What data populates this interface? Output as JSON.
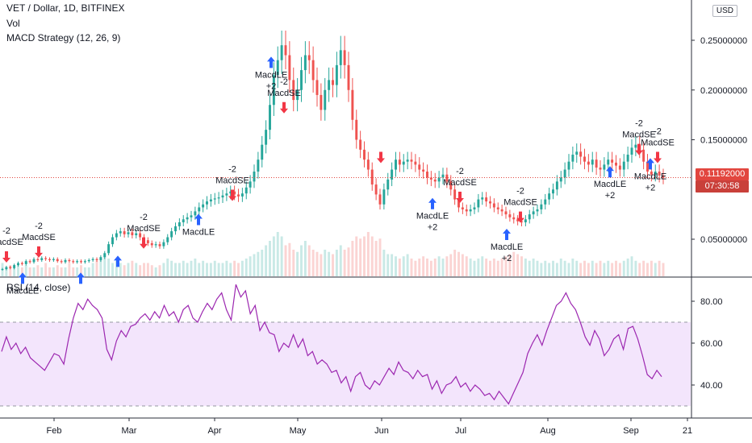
{
  "header": {
    "symbol_title": "VET / Dollar, 1D, BITFINEX",
    "volume_label": "Vol",
    "strategy_label": "MACD Strategy (12, 26, 9)"
  },
  "currency_badge": "USD",
  "price_axis": {
    "ticks": [
      "0.25000000",
      "0.20000000",
      "0.15000000",
      "0.05000000"
    ],
    "last_price": "0.11192000",
    "countdown": "07:30:58"
  },
  "rsi": {
    "label": "RSI (14, close)",
    "ticks": [
      "80.00",
      "60.00",
      "40.00"
    ],
    "upper_band": 70,
    "lower_band": 30,
    "values": [
      56,
      63,
      57,
      60,
      55,
      58,
      53,
      51,
      49,
      47,
      51,
      55,
      54,
      50,
      62,
      72,
      79,
      76,
      81,
      78,
      76,
      72,
      57,
      52,
      61,
      66,
      63,
      68,
      69,
      72,
      74,
      71,
      75,
      72,
      78,
      73,
      75,
      70,
      76,
      78,
      72,
      70,
      75,
      79,
      76,
      81,
      84,
      76,
      71,
      88,
      82,
      85,
      74,
      78,
      66,
      70,
      65,
      64,
      56,
      60,
      58,
      64,
      58,
      62,
      54,
      56,
      50,
      52,
      50,
      46,
      47,
      41,
      44,
      37,
      44,
      46,
      40,
      38,
      42,
      40,
      44,
      48,
      45,
      51,
      47,
      46,
      43,
      47,
      44,
      45,
      38,
      42,
      36,
      40,
      41,
      44,
      39,
      41,
      37,
      40,
      38,
      35,
      36,
      33,
      37,
      34,
      31,
      36,
      41,
      46,
      55,
      60,
      64,
      59,
      66,
      72,
      78,
      80,
      84,
      79,
      76,
      70,
      63,
      59,
      66,
      62,
      54,
      57,
      62,
      64,
      57,
      67,
      68,
      62,
      54,
      45,
      43,
      47,
      44
    ]
  },
  "trade_signals": [
    {
      "type": "sell",
      "text1": "-2",
      "text2": "MacdSE"
    },
    {
      "type": "buy",
      "text1": "MacdLE",
      "text2": ""
    },
    {
      "type": "sell",
      "text1": "-2",
      "text2": "MacdSE"
    },
    {
      "type": "buy",
      "text1": "",
      "text2": ""
    },
    {
      "type": "buy",
      "text1": "",
      "text2": ""
    },
    {
      "type": "sell",
      "text1": "-2",
      "text2": "MacdSE"
    },
    {
      "type": "buy",
      "text1": "MacdLE",
      "text2": ""
    },
    {
      "type": "sell",
      "text1": "-2",
      "text2": "MacdSE"
    },
    {
      "type": "buy",
      "text1": "MacdLE",
      "text2": "+2"
    },
    {
      "type": "sell",
      "text1": "-2",
      "text2": "MacdSE"
    },
    {
      "type": "sell",
      "text1": "",
      "text2": ""
    },
    {
      "type": "buy",
      "text1": "MacdLE",
      "text2": "+2"
    },
    {
      "type": "sell",
      "text1": "-2",
      "text2": "MacdSE"
    },
    {
      "type": "buy",
      "text1": "MacdLE",
      "text2": "+2"
    },
    {
      "type": "sell",
      "text1": "-2",
      "text2": "MacdSE"
    },
    {
      "type": "buy",
      "text1": "MacdLE",
      "text2": "+2"
    },
    {
      "type": "sell",
      "text1": "-2",
      "text2": "MacdSE"
    },
    {
      "type": "buy",
      "text1": "MacdLE",
      "text2": "+2"
    },
    {
      "type": "sell",
      "text1": "-2",
      "text2": "MacdSE"
    }
  ],
  "time_axis": [
    "Feb",
    "Mar",
    "Apr",
    "May",
    "Jun",
    "Jul",
    "Aug",
    "Sep",
    "21"
  ],
  "colors": {
    "up": "#26a69a",
    "down": "#ef5350",
    "buy_arrow": "#2962ff",
    "sell_arrow": "#f23645",
    "rsi_line": "#9c27b0",
    "rsi_band_fill": "#f3e5fc",
    "last_price": "#e2463f"
  },
  "chart_data": {
    "type": "candlestick",
    "series": [
      {
        "name": "VET / Dollar",
        "close": [
          0.02,
          0.022,
          0.021,
          0.024,
          0.026,
          0.025,
          0.028,
          0.027,
          0.03,
          0.029,
          0.031,
          0.03,
          0.029,
          0.03,
          0.028,
          0.027,
          0.029,
          0.028,
          0.027,
          0.028,
          0.027,
          0.028,
          0.029,
          0.03,
          0.029,
          0.032,
          0.036,
          0.045,
          0.052,
          0.056,
          0.058,
          0.055,
          0.057,
          0.054,
          0.056,
          0.052,
          0.049,
          0.046,
          0.044,
          0.045,
          0.043,
          0.047,
          0.052,
          0.058,
          0.063,
          0.067,
          0.07,
          0.072,
          0.074,
          0.078,
          0.082,
          0.085,
          0.088,
          0.09,
          0.091,
          0.092,
          0.094,
          0.096,
          0.098,
          0.095,
          0.093,
          0.096,
          0.102,
          0.108,
          0.118,
          0.13,
          0.145,
          0.16,
          0.185,
          0.215,
          0.23,
          0.245,
          0.235,
          0.21,
          0.19,
          0.2,
          0.22,
          0.235,
          0.23,
          0.21,
          0.195,
          0.18,
          0.2,
          0.21,
          0.205,
          0.225,
          0.24,
          0.225,
          0.2,
          0.17,
          0.15,
          0.14,
          0.13,
          0.12,
          0.105,
          0.095,
          0.085,
          0.1,
          0.11,
          0.12,
          0.13,
          0.125,
          0.128,
          0.13,
          0.128,
          0.125,
          0.12,
          0.118,
          0.112,
          0.11,
          0.108,
          0.112,
          0.115,
          0.108,
          0.1,
          0.09,
          0.082,
          0.08,
          0.078,
          0.08,
          0.082,
          0.09,
          0.092,
          0.088,
          0.086,
          0.082,
          0.08,
          0.078,
          0.075,
          0.072,
          0.07,
          0.068,
          0.067,
          0.07,
          0.075,
          0.078,
          0.08,
          0.085,
          0.09,
          0.096,
          0.1,
          0.108,
          0.112,
          0.12,
          0.128,
          0.135,
          0.138,
          0.133,
          0.128,
          0.125,
          0.13,
          0.122,
          0.12,
          0.125,
          0.13,
          0.127,
          0.124,
          0.12,
          0.128,
          0.135,
          0.142,
          0.145,
          0.14,
          0.128,
          0.118,
          0.115,
          0.118,
          0.114,
          0.112
        ]
      }
    ],
    "volume": [
      0.3,
      0.2,
      0.25,
      0.2,
      0.3,
      0.2,
      0.25,
      0.2,
      0.2,
      0.25,
      0.2,
      0.3,
      0.2,
      0.2,
      0.25,
      0.2,
      0.2,
      0.3,
      0.2,
      0.2,
      0.25,
      0.2,
      0.2,
      0.3,
      0.35,
      0.4,
      0.5,
      0.4,
      0.3,
      0.35,
      0.3,
      0.25,
      0.3,
      0.35,
      0.3,
      0.25,
      0.3,
      0.3,
      0.25,
      0.2,
      0.25,
      0.3,
      0.4,
      0.35,
      0.3,
      0.3,
      0.35,
      0.3,
      0.35,
      0.4,
      0.3,
      0.35,
      0.3,
      0.3,
      0.35,
      0.3,
      0.3,
      0.35,
      0.3,
      0.35,
      0.3,
      0.35,
      0.4,
      0.45,
      0.5,
      0.55,
      0.6,
      0.7,
      0.8,
      0.9,
      1.0,
      0.9,
      0.7,
      0.75,
      0.6,
      0.55,
      0.7,
      0.8,
      0.7,
      0.6,
      0.55,
      0.5,
      0.6,
      0.55,
      0.5,
      0.6,
      0.7,
      0.6,
      0.65,
      0.8,
      0.9,
      0.85,
      0.9,
      1.0,
      0.9,
      0.8,
      0.85,
      0.6,
      0.5,
      0.5,
      0.45,
      0.4,
      0.45,
      0.5,
      0.4,
      0.35,
      0.4,
      0.45,
      0.4,
      0.35,
      0.4,
      0.45,
      0.4,
      0.45,
      0.5,
      0.6,
      0.55,
      0.5,
      0.45,
      0.4,
      0.35,
      0.4,
      0.45,
      0.4,
      0.35,
      0.4,
      0.35,
      0.4,
      0.45,
      0.5,
      0.55,
      0.5,
      0.45,
      0.4,
      0.35,
      0.4,
      0.35,
      0.3,
      0.35,
      0.3,
      0.35,
      0.3,
      0.4,
      0.35,
      0.3,
      0.4,
      0.35,
      0.3,
      0.35,
      0.3,
      0.35,
      0.3,
      0.35,
      0.3,
      0.35,
      0.3,
      0.35,
      0.3,
      0.35,
      0.4,
      0.45,
      0.35,
      0.3,
      0.35,
      0.3,
      0.35,
      0.3,
      0.35,
      0.3
    ],
    "y_ticks": [
      0.25,
      0.2,
      0.15,
      0.05
    ],
    "last_price": 0.11192,
    "x_labels": [
      "Feb",
      "Mar",
      "Apr",
      "May",
      "Jun",
      "Jul",
      "Aug",
      "Sep",
      "21"
    ]
  }
}
